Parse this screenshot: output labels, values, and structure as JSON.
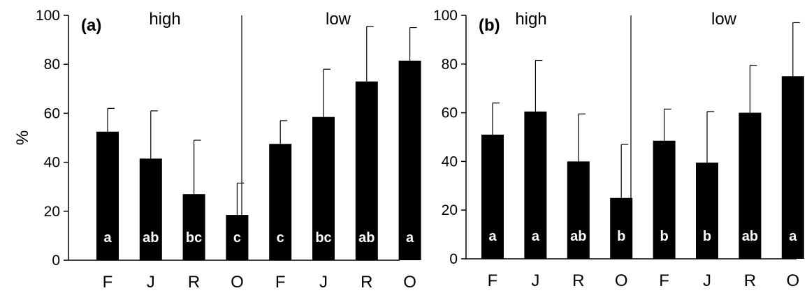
{
  "chart_data": [
    {
      "type": "bar",
      "panel_label": "(a)",
      "ylabel": "%",
      "ylim": [
        0,
        100
      ],
      "yticks": [
        "0",
        "20",
        "40",
        "60",
        "80",
        "100"
      ],
      "groups": [
        "high",
        "low"
      ],
      "categories": [
        "F",
        "J",
        "R",
        "O",
        "F",
        "J",
        "R",
        "O"
      ],
      "values": [
        52.5,
        41.5,
        27,
        18.5,
        47.5,
        58.5,
        73,
        81.5
      ],
      "errors": [
        9.5,
        19.5,
        22,
        13,
        9.5,
        19.5,
        22.5,
        13.5
      ],
      "significance": [
        "a",
        "ab",
        "bc",
        "c",
        "c",
        "bc",
        "ab",
        "a"
      ],
      "color": "#000000"
    },
    {
      "type": "bar",
      "panel_label": "(b)",
      "ylabel": "",
      "ylim": [
        0,
        100
      ],
      "yticks": [
        "0",
        "20",
        "40",
        "60",
        "80",
        "100"
      ],
      "groups": [
        "high",
        "low"
      ],
      "categories": [
        "F",
        "J",
        "R",
        "O",
        "F",
        "J",
        "R",
        "O"
      ],
      "values": [
        51,
        60.5,
        40,
        25,
        48.5,
        39.5,
        60,
        75
      ],
      "errors": [
        13,
        21,
        19.5,
        22,
        13,
        21,
        19.5,
        22
      ],
      "significance": [
        "a",
        "a",
        "ab",
        "b",
        "b",
        "b",
        "ab",
        "a"
      ],
      "color": "#000000"
    }
  ]
}
